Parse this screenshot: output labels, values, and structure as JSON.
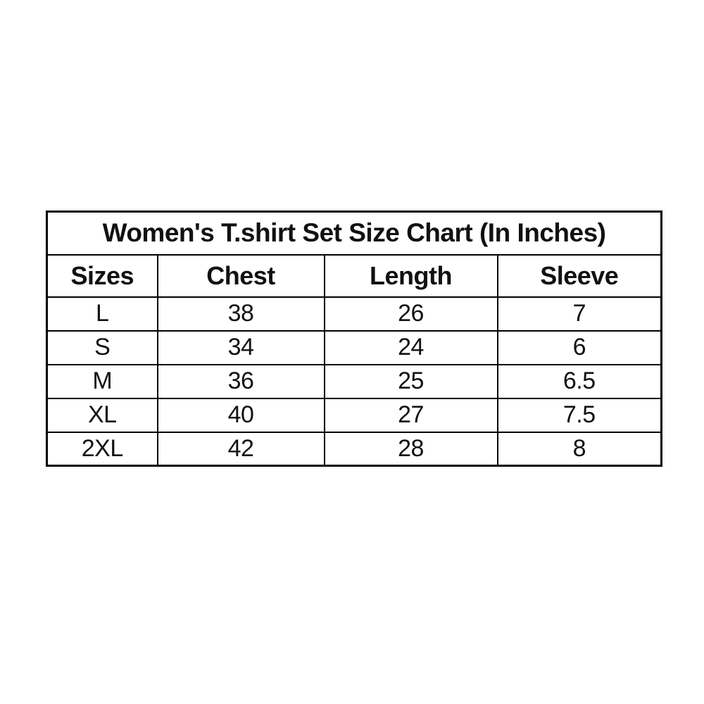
{
  "colors": {
    "background": "#ffffff",
    "border": "#000000",
    "text": "#111111"
  },
  "chart_data": {
    "type": "table",
    "title": "Women's T.shirt Set Size Chart (In Inches)",
    "units": "inches",
    "columns": [
      "Sizes",
      "Chest",
      "Length",
      "Sleeve"
    ],
    "rows": [
      [
        "L",
        38,
        26,
        7
      ],
      [
        "S",
        34,
        24,
        6
      ],
      [
        "M",
        36,
        25,
        6.5
      ],
      [
        "XL",
        40,
        27,
        7.5
      ],
      [
        "2XL",
        42,
        28,
        8
      ]
    ]
  }
}
